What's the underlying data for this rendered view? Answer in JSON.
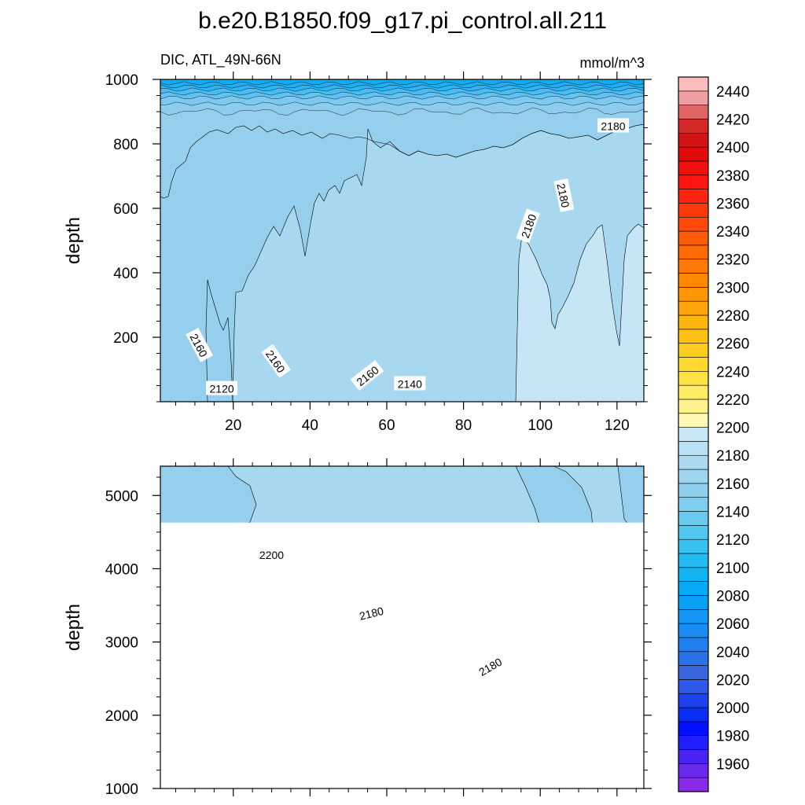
{
  "title": "b.e20.B1850.f09_g17.pi_control.all.211",
  "colors": {
    "water_low": "#96cfee",
    "water_mid": "#a8d8f0",
    "water_high": "#c6e6f6",
    "warm_low": "#fff7b0",
    "warm_mid": "#ffee80",
    "surface_dark": "#19aaee",
    "outline": "#000000"
  },
  "chart_data": {
    "type": "heatmap",
    "variable_label": "DIC, ATL_49N-66N",
    "units": "mmol/m^3",
    "panels": [
      {
        "name": "upper",
        "ylabel": "depth",
        "xlim": [
          1,
          127
        ],
        "ylim": [
          1000,
          0
        ],
        "xticks": [
          20,
          40,
          60,
          80,
          100,
          120
        ],
        "yticks": [
          200,
          400,
          600,
          800,
          1000
        ],
        "contour_labels": [
          {
            "text": "2120",
            "x": 17,
            "depth": 40,
            "angle": 0
          },
          {
            "text": "2140",
            "x": 66,
            "depth": 55,
            "angle": 0
          },
          {
            "text": "2160",
            "x": 55,
            "depth": 80,
            "angle": -38
          },
          {
            "text": "2160",
            "x": 31,
            "depth": 125,
            "angle": 55
          },
          {
            "text": "2160",
            "x": 11,
            "depth": 175,
            "angle": 62
          },
          {
            "text": "2180",
            "x": 97,
            "depth": 545,
            "angle": -70
          },
          {
            "text": "2180",
            "x": 106,
            "depth": 640,
            "angle": 78
          },
          {
            "text": "2180",
            "x": 119,
            "depth": 855,
            "angle": 0
          }
        ]
      },
      {
        "name": "lower",
        "ylabel": "depth",
        "xlim": [
          1,
          127
        ],
        "ylim": [
          5400,
          1000
        ],
        "xticks": [
          20,
          40,
          60,
          80,
          100,
          120
        ],
        "yticks": [
          1000,
          2000,
          3000,
          4000,
          5000
        ],
        "sea_floor_depth": 4630,
        "contour_labels": [
          {
            "text": "2180",
            "x": 87,
            "depth": 2660,
            "angle": -30
          },
          {
            "text": "2180",
            "x": 56,
            "depth": 3390,
            "angle": -14
          },
          {
            "text": "2200",
            "x": 30,
            "depth": 4190,
            "angle": 0
          }
        ]
      }
    ],
    "colorbar": {
      "levels": [
        1960,
        1980,
        2000,
        2020,
        2040,
        2060,
        2080,
        2100,
        2120,
        2140,
        2160,
        2180,
        2200,
        2220,
        2240,
        2260,
        2280,
        2300,
        2320,
        2340,
        2360,
        2380,
        2400,
        2420,
        2440
      ],
      "interval": 10,
      "colors": [
        "#8a2be8",
        "#6a28ee",
        "#4a22f4",
        "#2020ff",
        "#0010ff",
        "#0a2ef6",
        "#1e40ee",
        "#2e58e8",
        "#3a66e0",
        "#2a72e8",
        "#2080f0",
        "#1a8cf2",
        "#1496f4",
        "#08a0f6",
        "#04aaf6",
        "#12b4f4",
        "#22bcf0",
        "#38c2f0",
        "#52c6f0",
        "#68caee",
        "#7ccdee",
        "#8ed0ee",
        "#9ed5f0",
        "#acd9f0",
        "#bae0f4",
        "#c8e6f6",
        "#fff8b4",
        "#fff28c",
        "#ffec66",
        "#ffe244",
        "#ffd830",
        "#ffcc22",
        "#ffc014",
        "#ffb410",
        "#ffa40a",
        "#ff9606",
        "#ff8804",
        "#ff7a04",
        "#ff6a06",
        "#ff5a08",
        "#ff4a0a",
        "#ff380c",
        "#ff2410",
        "#ff1612",
        "#f01010",
        "#e00c0c",
        "#d41414",
        "#d42a2a",
        "#e06464",
        "#f0a0a0",
        "#ffbcbc"
      ]
    }
  }
}
